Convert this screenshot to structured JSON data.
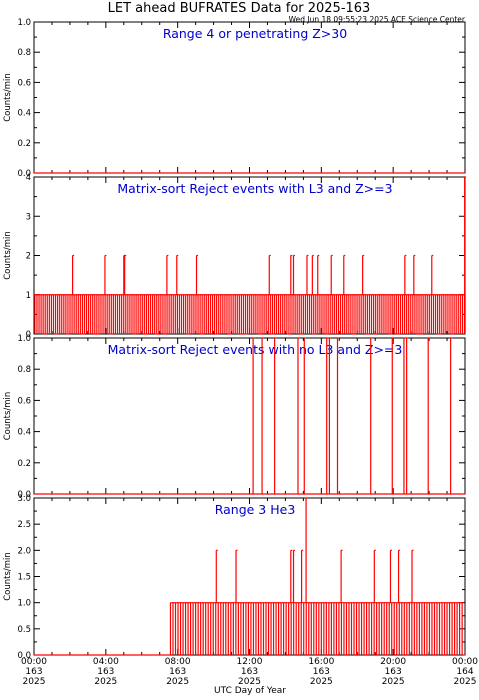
{
  "title": "LET ahead BUFRATES Data for 2025-163",
  "timestamp": "Wed Jun 18 09:55:23 2025 ACE Science Center",
  "xlabel": "UTC Day of Year",
  "ylabel": "Counts/min",
  "x_ticks": [
    {
      "time": "00:00",
      "doy": "163",
      "year": "2025"
    },
    {
      "time": "04:00",
      "doy": "163",
      "year": "2025"
    },
    {
      "time": "08:00",
      "doy": "163",
      "year": "2025"
    },
    {
      "time": "12:00",
      "doy": "163",
      "year": "2025"
    },
    {
      "time": "16:00",
      "doy": "163",
      "year": "2025"
    },
    {
      "time": "20:00",
      "doy": "163",
      "year": "2025"
    },
    {
      "time": "00:00",
      "doy": "164",
      "year": "2025"
    }
  ],
  "colors": {
    "trace": "#ff0000",
    "panel_title": "#0000cc",
    "axis": "#000000"
  },
  "chart_data": [
    {
      "type": "line",
      "title": "Range 4 or  penetrating Z>30",
      "ylabel": "Counts/min",
      "xlim": [
        0,
        24
      ],
      "ylim": [
        0,
        1
      ],
      "y_ticks": [
        "0.0",
        "0.2",
        "0.4",
        "0.6",
        "0.8",
        "1.0"
      ],
      "baseline": 0,
      "spikes": []
    },
    {
      "type": "line",
      "title": "Matrix-sort Reject events with L3 and Z>=3",
      "ylabel": "Counts/min",
      "xlim": [
        0,
        24
      ],
      "ylim": [
        0,
        4
      ],
      "y_ticks": [
        "0",
        "1",
        "2",
        "3",
        "4"
      ],
      "baseline": 1,
      "spikes": [
        {
          "x": 2.15,
          "y": 2
        },
        {
          "x": 3.95,
          "y": 2
        },
        {
          "x": 5.0,
          "y": 2
        },
        {
          "x": 5.05,
          "y": 2
        },
        {
          "x": 7.4,
          "y": 2
        },
        {
          "x": 7.95,
          "y": 2
        },
        {
          "x": 9.05,
          "y": 2
        },
        {
          "x": 13.1,
          "y": 2
        },
        {
          "x": 14.3,
          "y": 2
        },
        {
          "x": 14.45,
          "y": 2
        },
        {
          "x": 15.2,
          "y": 2
        },
        {
          "x": 15.5,
          "y": 2
        },
        {
          "x": 15.8,
          "y": 2
        },
        {
          "x": 16.55,
          "y": 2
        },
        {
          "x": 17.25,
          "y": 2
        },
        {
          "x": 18.3,
          "y": 2
        },
        {
          "x": 20.65,
          "y": 2
        },
        {
          "x": 21.15,
          "y": 2
        },
        {
          "x": 22.15,
          "y": 2
        },
        {
          "x": 23.98,
          "y": 4
        }
      ],
      "dips": [
        0.6,
        1.25,
        1.9,
        2.7,
        3.4,
        3.55,
        4.3,
        5.6,
        6.2,
        6.85,
        7.3,
        8.6,
        9.35,
        10.15,
        10.9,
        11.5,
        11.8,
        12.6,
        13.25,
        14.2,
        14.9,
        15.6,
        16.3,
        17.8,
        18.6,
        19.0,
        19.85,
        20.3,
        21.4,
        21.55,
        22.6,
        23.3
      ]
    },
    {
      "type": "line",
      "title": "Matrix-sort Reject events with no L3 and Z>=3",
      "ylabel": "Counts/min",
      "xlim": [
        0,
        24
      ],
      "ylim": [
        0,
        1
      ],
      "y_ticks": [
        "0.0",
        "0.2",
        "0.4",
        "0.6",
        "0.8",
        "1.0"
      ],
      "baseline": 0,
      "spikes": [
        {
          "x": 12.2,
          "y": 1
        },
        {
          "x": 12.7,
          "y": 1
        },
        {
          "x": 13.4,
          "y": 1
        },
        {
          "x": 14.7,
          "y": 1
        },
        {
          "x": 15.05,
          "y": 1
        },
        {
          "x": 16.3,
          "y": 1
        },
        {
          "x": 16.45,
          "y": 1
        },
        {
          "x": 16.9,
          "y": 1
        },
        {
          "x": 18.75,
          "y": 1
        },
        {
          "x": 19.95,
          "y": 1
        },
        {
          "x": 20.6,
          "y": 1
        },
        {
          "x": 20.75,
          "y": 1
        },
        {
          "x": 21.95,
          "y": 1
        },
        {
          "x": 23.2,
          "y": 1
        }
      ]
    },
    {
      "type": "line",
      "title": "Range 3 He3",
      "ylabel": "Counts/min",
      "xlim": [
        0,
        24
      ],
      "ylim": [
        0,
        3
      ],
      "y_ticks": [
        "0.0",
        "0.5",
        "1.0",
        "1.5",
        "2.0",
        "2.5",
        "3.0"
      ],
      "baseline": 0,
      "active_range": [
        7.6,
        23.9
      ],
      "spikes": [
        {
          "x": 10.15,
          "y": 2
        },
        {
          "x": 11.25,
          "y": 2
        },
        {
          "x": 14.3,
          "y": 2
        },
        {
          "x": 14.45,
          "y": 2
        },
        {
          "x": 14.9,
          "y": 2
        },
        {
          "x": 15.15,
          "y": 3
        },
        {
          "x": 17.1,
          "y": 2
        },
        {
          "x": 18.95,
          "y": 2
        },
        {
          "x": 19.85,
          "y": 2
        },
        {
          "x": 20.3,
          "y": 2
        },
        {
          "x": 21.05,
          "y": 2
        }
      ]
    }
  ]
}
